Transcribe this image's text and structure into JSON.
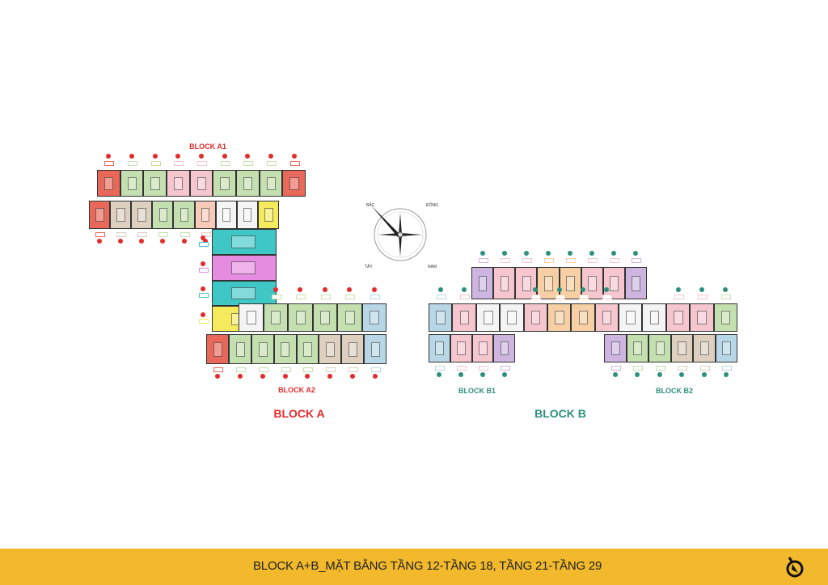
{
  "colors": {
    "red": "#e8685a",
    "green": "#c5e0b0",
    "pink": "#f6c6cf",
    "beige": "#ddd0bf",
    "peach": "#f7c9b8",
    "yellow": "#f4ea5c",
    "teal": "#3fc7c6",
    "magenta": "#e58be0",
    "blue": "#b8d7e6",
    "purple": "#cdb5e0",
    "orange": "#f6cfa4",
    "core": "#f4f4f4",
    "blockA": "#e32b2b",
    "blockB": "#2d8f7c",
    "footer": "#f2b92c"
  },
  "compass": {
    "north": "BẮC",
    "east": "ĐÔNG",
    "west": "TÂY",
    "south": "NAM"
  },
  "blocks": {
    "a1_label": "BLOCK A1",
    "a2_label": "BLOCK A2",
    "a_label": "BLOCK A",
    "b1_label": "BLOCK B1",
    "b2_label": "BLOCK B2",
    "b_label": "BLOCK B"
  },
  "units": {
    "a1_top": [
      "red",
      "green",
      "green",
      "pink",
      "pink",
      "green",
      "green",
      "green",
      "red"
    ],
    "a1_bottom": [
      "red",
      "beige",
      "beige",
      "green",
      "green",
      "peach",
      "core",
      "core",
      "yellow"
    ],
    "a_spine": [
      "teal",
      "magenta",
      "teal",
      "yellow"
    ],
    "a2_top": [
      "core",
      "green",
      "green",
      "green",
      "green",
      "blue"
    ],
    "a2_bottom": [
      "red",
      "green",
      "green",
      "green",
      "green",
      "beige",
      "beige",
      "blue"
    ],
    "b_top": [
      "purple",
      "pink",
      "pink",
      "orange",
      "orange",
      "pink",
      "pink",
      "purple"
    ],
    "b_middle": [
      "blue",
      "pink",
      "core",
      "core",
      "pink",
      "orange",
      "orange",
      "pink",
      "core",
      "core",
      "pink",
      "pink",
      "green"
    ],
    "b1_bottom": [
      "blue",
      "pink",
      "pink",
      "purple"
    ],
    "b2_bottom": [
      "purple",
      "green",
      "green",
      "beige",
      "beige",
      "blue"
    ]
  },
  "footer": {
    "title": "BLOCK A+B_MẶT BẰNG TẦNG 12-TẦNG 18, TẦNG 21-TẦNG 29",
    "icon": "compass-logo-icon"
  }
}
